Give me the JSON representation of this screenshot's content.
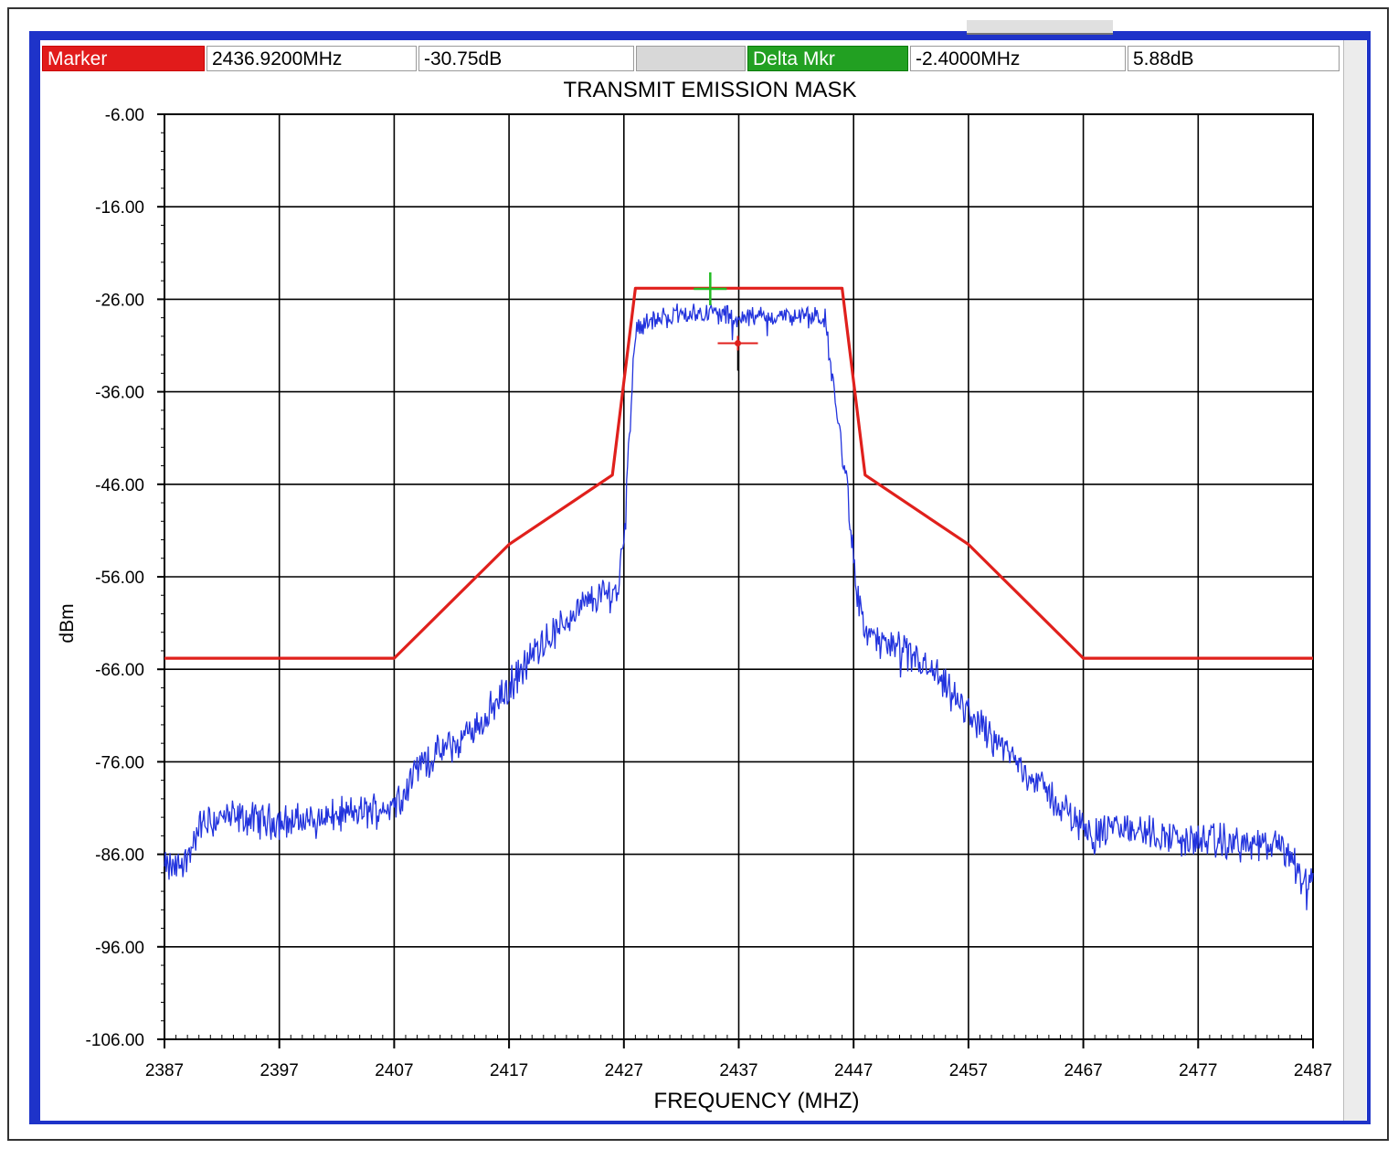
{
  "marker_bar": {
    "marker_label": "Marker",
    "marker_freq": "2436.9200MHz",
    "marker_level": "-30.75dB",
    "delta_label": "Delta Mkr",
    "delta_freq": "-2.4000MHz",
    "delta_level": "5.88dB"
  },
  "colors": {
    "mask": "#e0201c",
    "trace": "#2233dd",
    "marker": "#e0201c",
    "delta_marker": "#22bb22",
    "window_frame": "#1e33c9"
  },
  "chart_data": {
    "type": "line",
    "title": "TRANSMIT EMISSION MASK",
    "xlabel": "FREQUENCY (MHZ)",
    "ylabel": "dBm",
    "xlim": [
      2387,
      2487
    ],
    "ylim": [
      -106,
      -6
    ],
    "xticks": [
      2387,
      2397,
      2407,
      2417,
      2427,
      2437,
      2447,
      2457,
      2467,
      2477,
      2487
    ],
    "xtick_labels": [
      "2387",
      "2397",
      "2407",
      "2417",
      "2427",
      "2437",
      "2447",
      "2457",
      "2467",
      "2477",
      "2487"
    ],
    "yticks": [
      -6,
      -16,
      -26,
      -36,
      -46,
      -56,
      -66,
      -76,
      -86,
      -96,
      -106
    ],
    "ytick_labels": [
      "-6.00",
      "-16.00",
      "-26.00",
      "-36.00",
      "-46.00",
      "-56.00",
      "-66.00",
      "-76.00",
      "-86.00",
      "-96.00",
      "-106.00"
    ],
    "grid": true,
    "series": [
      {
        "role": "mask",
        "x": [
          2387,
          2407,
          2417,
          2426,
          2428,
          2446,
          2448,
          2457,
          2467,
          2487
        ],
        "y": [
          -64.8,
          -64.8,
          -52.5,
          -45,
          -24.8,
          -24.8,
          -45,
          -52.5,
          -64.8,
          -64.8
        ]
      },
      {
        "role": "spectrum",
        "x": [
          2387,
          2388,
          2389,
          2390,
          2392,
          2395,
          2398,
          2401,
          2404,
          2406,
          2407,
          2408,
          2409,
          2411,
          2413,
          2415,
          2417,
          2419,
          2421,
          2423,
          2425,
          2426.5,
          2427,
          2427.5,
          2428,
          2429,
          2432,
          2435,
          2437,
          2440,
          2443,
          2444.5,
          2445.5,
          2446.5,
          2447.3,
          2448,
          2450,
          2452,
          2454,
          2456,
          2458,
          2460,
          2462,
          2464,
          2466,
          2468,
          2470,
          2472,
          2474,
          2476,
          2478,
          2480,
          2482,
          2484,
          2485,
          2486,
          2487
        ],
        "y": [
          -87.5,
          -87.5,
          -86.5,
          -83,
          -82,
          -82.3,
          -82.5,
          -82,
          -81.5,
          -81,
          -80.5,
          -79,
          -76.5,
          -75,
          -73.5,
          -71,
          -68,
          -64.5,
          -62,
          -59.5,
          -58,
          -57.5,
          -51,
          -40,
          -29,
          -28.5,
          -27.5,
          -27.5,
          -28,
          -27.8,
          -28,
          -28,
          -38,
          -47,
          -58,
          -62,
          -63.5,
          -64.5,
          -66.5,
          -69.5,
          -72,
          -74.5,
          -77,
          -79.5,
          -82,
          -84,
          -83,
          -83.5,
          -84,
          -84.5,
          -84.5,
          -84.8,
          -85,
          -85.2,
          -86,
          -88.5,
          -89
        ]
      }
    ],
    "markers": [
      {
        "role": "marker",
        "x": 2436.92,
        "y": -30.75
      },
      {
        "role": "delta_marker",
        "x": 2434.52,
        "y": -24.87
      }
    ]
  }
}
